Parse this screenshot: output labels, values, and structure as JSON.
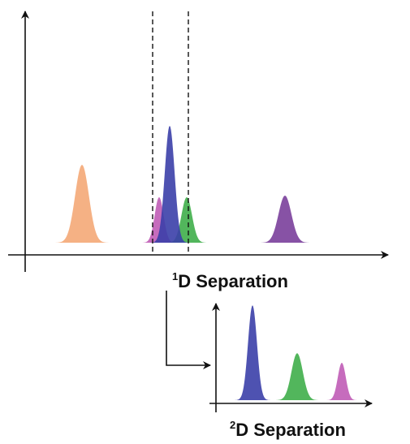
{
  "labels": {
    "first_dimension": {
      "superscript": "1",
      "text": "D Separation"
    },
    "second_dimension": {
      "superscript": "2",
      "text": "D Separation"
    }
  },
  "colors": {
    "axis": "#111111",
    "orange": "#f4a877",
    "purple": "#7a3f9b",
    "magenta": "#c05cb6",
    "blue": "#3b3fa8",
    "green": "#3fae4a"
  },
  "first_dimension_peaks": [
    {
      "name": "orange-peak",
      "color": "orange",
      "height": 0.48
    },
    {
      "name": "magenta-peak",
      "color": "magenta",
      "height": 0.28
    },
    {
      "name": "blue-peak",
      "color": "blue",
      "height": 0.72
    },
    {
      "name": "green-peak",
      "color": "green",
      "height": 0.28
    },
    {
      "name": "purple-peak",
      "color": "purple",
      "height": 0.29
    }
  ],
  "second_dimension_peaks": [
    {
      "name": "blue-peak",
      "color": "blue",
      "height": 0.99
    },
    {
      "name": "green-peak",
      "color": "green",
      "height": 0.49
    },
    {
      "name": "magenta-peak",
      "color": "magenta",
      "height": 0.39
    }
  ]
}
